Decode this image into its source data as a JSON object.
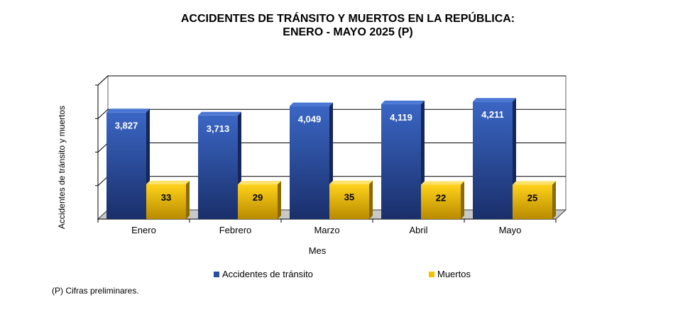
{
  "colors": {
    "accidents": "#2a4f9c",
    "accidents_dark": "#15275a",
    "deaths": "#f2c200",
    "deaths_dark": "#8a6a00"
  },
  "chart_data": {
    "type": "bar",
    "title_line1": "ACCIDENTES DE TRÁNSITO Y MUERTOS EN LA REPÚBLICA:",
    "title_line2": "ENERO - MAYO 2025 (P)",
    "categories": [
      "Enero",
      "Febrero",
      "Marzo",
      "Abril",
      "Mayo"
    ],
    "series": [
      {
        "name": "Accidentes de tránsito",
        "values": [
          3827,
          3713,
          4049,
          4119,
          4211
        ],
        "labels": [
          "3,827",
          "3,713",
          "4,049",
          "4,119",
          "4,211"
        ]
      },
      {
        "name": "Muertos",
        "values": [
          33,
          29,
          35,
          22,
          25
        ],
        "labels": [
          "33",
          "29",
          "35",
          "22",
          "25"
        ]
      }
    ],
    "xlabel": "Mes",
    "ylabel": "Accidentes de tránsito y muertos",
    "grid": true,
    "legend": "bottom",
    "note": "(P) Cifras  preliminares."
  }
}
